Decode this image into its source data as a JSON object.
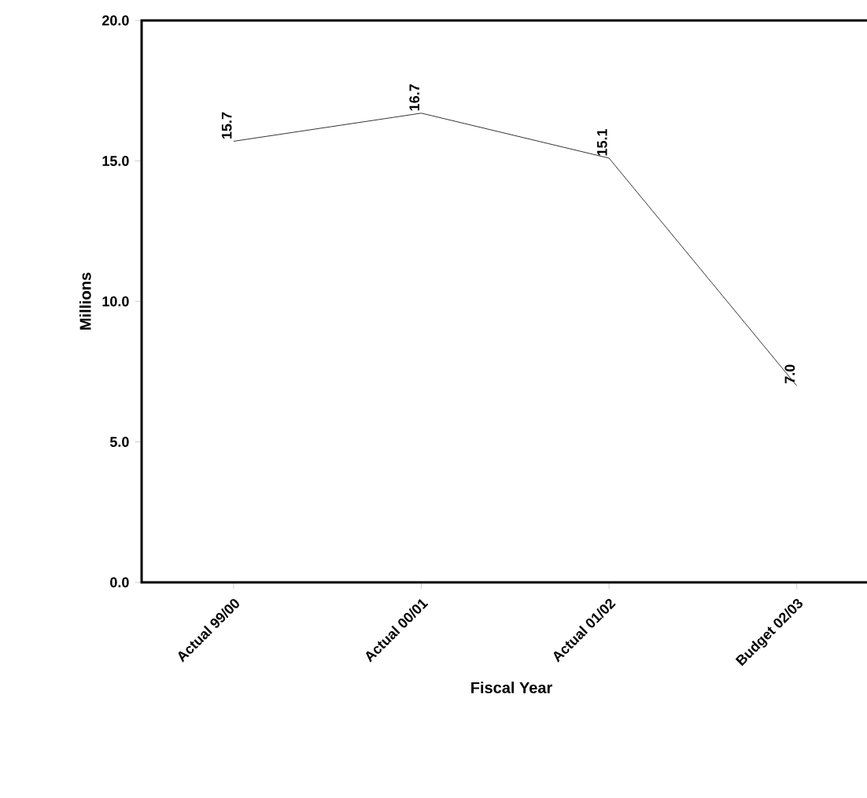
{
  "chart_data": {
    "type": "line",
    "xlabel": "Fiscal Year",
    "ylabel": "Millions",
    "categories": [
      "Actual 99/00",
      "Actual 00/01",
      "Actual 01/02",
      "Budget 02/03"
    ],
    "values": [
      15.7,
      16.7,
      15.1,
      7.0
    ],
    "color": "#000000",
    "ylim": [
      0,
      20
    ],
    "yticks": [
      {
        "value": 0,
        "label": "0.0"
      },
      {
        "value": 5,
        "label": "5.0"
      },
      {
        "value": 10,
        "label": "10.0"
      },
      {
        "value": 15,
        "label": "15.0"
      },
      {
        "value": 20,
        "label": "20.0"
      }
    ],
    "value_labels": [
      "15.7",
      "16.7",
      "15.1",
      "7.0"
    ],
    "grid": false,
    "marker": "none",
    "line_style": "solid"
  }
}
